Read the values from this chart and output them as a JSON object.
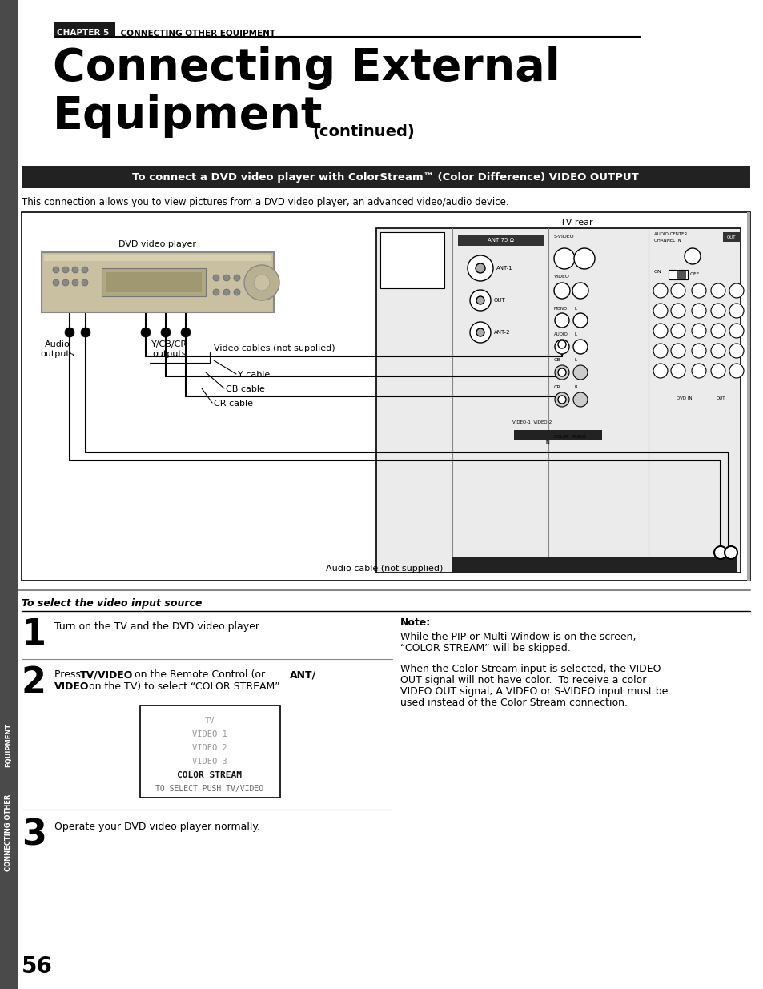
{
  "bg_color": "#ffffff",
  "sidebar_color": "#4a4a4a",
  "chapter_box_color": "#1a1a1a",
  "chapter_box_text": "CHAPTER 5",
  "chapter_rest_text": " CONNECTING OTHER EQUIPMENT",
  "title_line1": "Connecting External",
  "title_line2": "Equipment",
  "title_continued": " (continued)",
  "dvd_banner_text": "To connect a DVD video player with ColorStream™ (Color Difference) VIDEO OUTPUT",
  "dvd_banner_bg": "#222222",
  "dvd_banner_fg": "#ffffff",
  "intro_text": "This connection allows you to view pictures from a DVD video player, an advanced video/audio device.",
  "tv_rear_label": "TV rear",
  "dvd_label": "DVD video player",
  "audio_outputs_label": "Audio\noutputs",
  "ycbcr_label": "Y/CB/CR\noutputs",
  "video_cables_label": "Video cables (not supplied)",
  "y_cable_label": "Y cable",
  "cb_cable_label": "CB cable",
  "cr_cable_label": "CR cable",
  "audio_cable_label": "Audio cable (not supplied)",
  "section_title": "To select the video input source",
  "step1_num": "1",
  "step1_text": "Turn on the TV and the DVD video player.",
  "step2_num": "2",
  "step3_num": "3",
  "step3_text": "Operate your DVD video player normally.",
  "note_title": "Note:",
  "note_text1_l1": "While the PIP or Multi-Window is on the screen,",
  "note_text1_l2": "“COLOR STREAM” will be skipped.",
  "note_text2_l1": "When the Color Stream input is selected, the VIDEO",
  "note_text2_l2": "OUT signal will not have color.  To receive a color",
  "note_text2_l3": "VIDEO OUT signal, A VIDEO or S-VIDEO input must be",
  "note_text2_l4": "used instead of the Color Stream connection.",
  "menu_box_lines": [
    "TV",
    "VIDEO 1",
    "VIDEO 2",
    "VIDEO 3",
    "COLOR STREAM",
    "TO SELECT PUSH TV/VIDEO"
  ],
  "page_number": "56",
  "sidebar_label_l1": "CONNECTING OTHER",
  "sidebar_label_l2": "EQUIPMENT"
}
